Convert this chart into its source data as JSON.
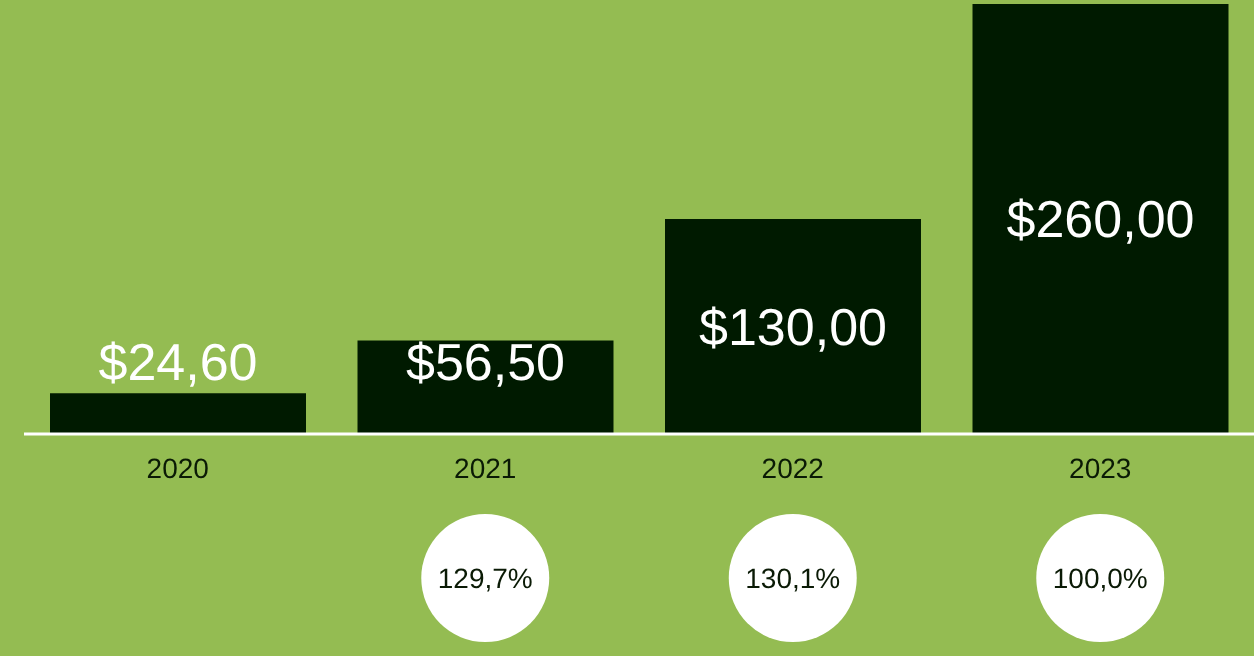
{
  "chart_data": {
    "type": "bar",
    "categories": [
      "2020",
      "2021",
      "2022",
      "2023"
    ],
    "values": [
      24.6,
      56.5,
      130,
      260
    ],
    "color": "#001a00",
    "value_labels": [
      "$24,60",
      "$56,50",
      "$130,00",
      "$260,00"
    ],
    "ylim": [
      0,
      260
    ],
    "tick_labels": "x",
    "grid": false,
    "annotations": [
      "129,7%",
      "130,1%",
      "100,0%"
    ]
  }
}
